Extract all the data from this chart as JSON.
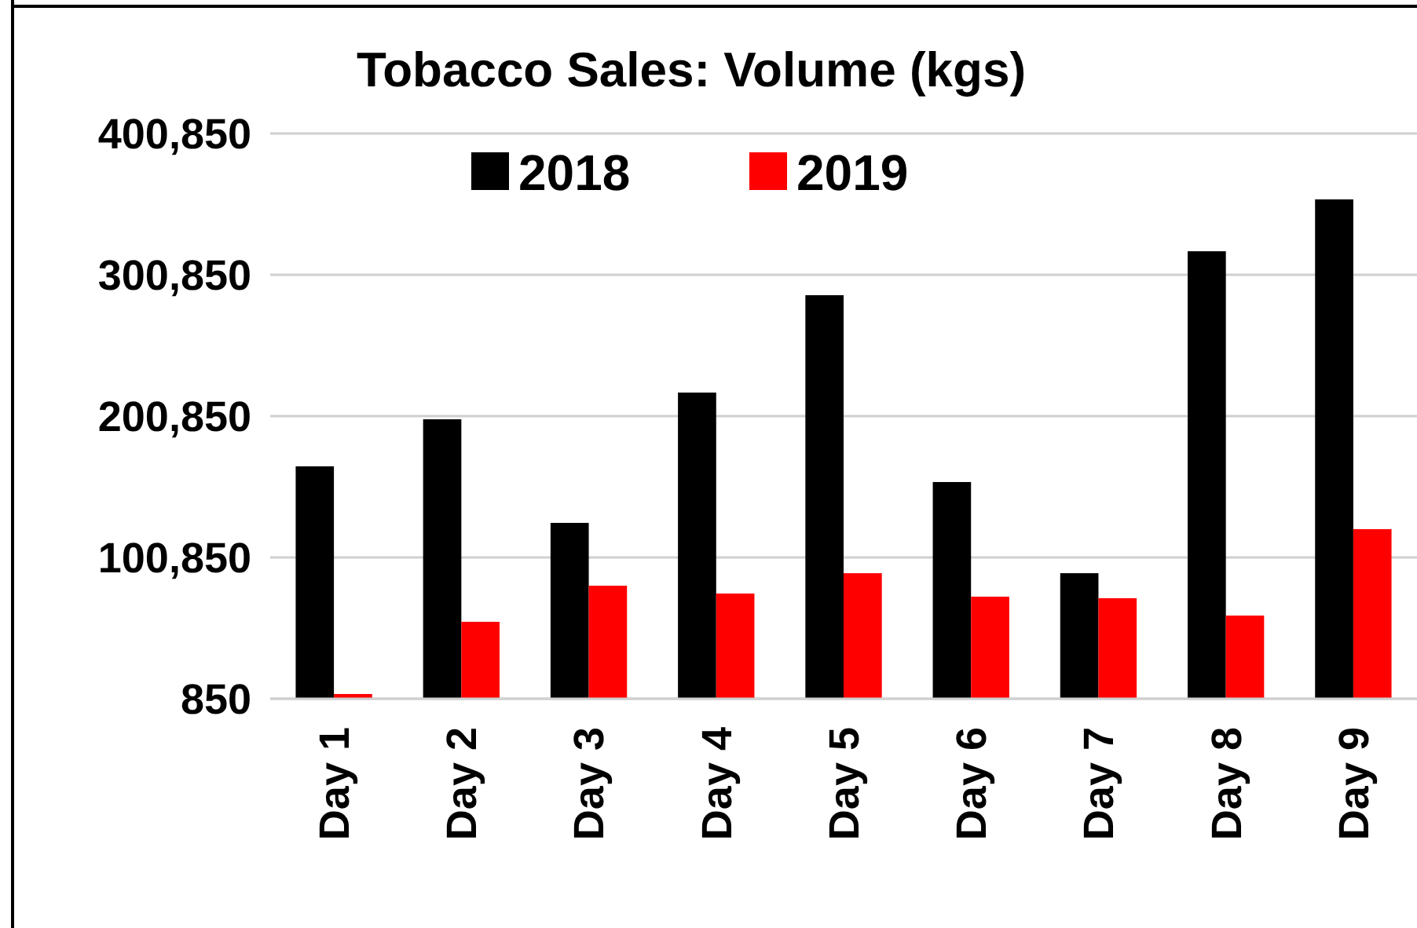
{
  "chart_data": {
    "type": "bar",
    "title": "Tobacco Sales: Volume (kgs)",
    "categories": [
      "Day 1",
      "Day 2",
      "Day 3",
      "Day 4",
      "Day 5",
      "Day 6",
      "Day 7",
      "Day 8",
      "Day 9"
    ],
    "series": [
      {
        "name": "2018",
        "color": "#000000",
        "values": [
          165300,
          198600,
          125300,
          217500,
          286400,
          154200,
          89700,
          317500,
          354200
        ]
      },
      {
        "name": "2019",
        "color": "#ff0000",
        "values": [
          4200,
          55300,
          80850,
          75300,
          89700,
          73100,
          72000,
          59700,
          120850
        ]
      }
    ],
    "ylim": [
      850,
      400850
    ],
    "yticks": [
      {
        "value": 850,
        "label": "850"
      },
      {
        "value": 100850,
        "label": "100,850"
      },
      {
        "value": 200850,
        "label": "200,850"
      },
      {
        "value": 300850,
        "label": "300,850"
      },
      {
        "value": 400850,
        "label": "400,850"
      }
    ],
    "grid": "y",
    "legend": "top"
  }
}
